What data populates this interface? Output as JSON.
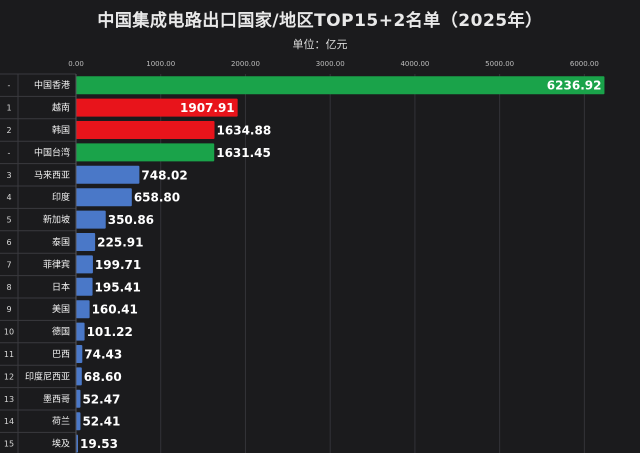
{
  "chart_data": {
    "type": "bar",
    "orientation": "horizontal",
    "title": "中国集成电路出口国家/地区TOP15+2名单（2025年）",
    "unit_label": "单位：亿元",
    "xlim": [
      0,
      6300
    ],
    "ticks": [
      "0.00",
      "1000.00",
      "2000.00",
      "3000.00",
      "4000.00",
      "5000.00",
      "6000.00"
    ],
    "tick_values": [
      0,
      1000,
      2000,
      3000,
      4000,
      5000,
      6000
    ],
    "legend": "none",
    "colors": {
      "region": "#1aa34a",
      "top_country": "#e8141b",
      "country": "#4a78c8"
    },
    "bars": [
      {
        "rank": "-",
        "name": "中国香港",
        "value": 6236.92,
        "label": "6236.92",
        "kind": "region"
      },
      {
        "rank": "1",
        "name": "越南",
        "value": 1907.91,
        "label": "1907.91",
        "kind": "top_country"
      },
      {
        "rank": "2",
        "name": "韩国",
        "value": 1634.88,
        "label": "1634.88",
        "kind": "top_country"
      },
      {
        "rank": "-",
        "name": "中国台湾",
        "value": 1631.45,
        "label": "1631.45",
        "kind": "region"
      },
      {
        "rank": "3",
        "name": "马来西亚",
        "value": 748.02,
        "label": "748.02",
        "kind": "country"
      },
      {
        "rank": "4",
        "name": "印度",
        "value": 658.8,
        "label": "658.80",
        "kind": "country"
      },
      {
        "rank": "5",
        "name": "新加坡",
        "value": 350.86,
        "label": "350.86",
        "kind": "country"
      },
      {
        "rank": "6",
        "name": "泰国",
        "value": 225.91,
        "label": "225.91",
        "kind": "country"
      },
      {
        "rank": "7",
        "name": "菲律宾",
        "value": 199.71,
        "label": "199.71",
        "kind": "country"
      },
      {
        "rank": "8",
        "name": "日本",
        "value": 195.41,
        "label": "195.41",
        "kind": "country"
      },
      {
        "rank": "9",
        "name": "美国",
        "value": 160.41,
        "label": "160.41",
        "kind": "country"
      },
      {
        "rank": "10",
        "name": "德国",
        "value": 101.22,
        "label": "101.22",
        "kind": "country"
      },
      {
        "rank": "11",
        "name": "巴西",
        "value": 74.43,
        "label": "74.43",
        "kind": "country"
      },
      {
        "rank": "12",
        "name": "印度尼西亚",
        "value": 68.6,
        "label": "68.60",
        "kind": "country"
      },
      {
        "rank": "13",
        "name": "墨西哥",
        "value": 52.47,
        "label": "52.47",
        "kind": "country"
      },
      {
        "rank": "14",
        "name": "荷兰",
        "value": 52.41,
        "label": "52.41",
        "kind": "country"
      },
      {
        "rank": "15",
        "name": "埃及",
        "value": 19.53,
        "label": "19.53",
        "kind": "country"
      }
    ]
  }
}
